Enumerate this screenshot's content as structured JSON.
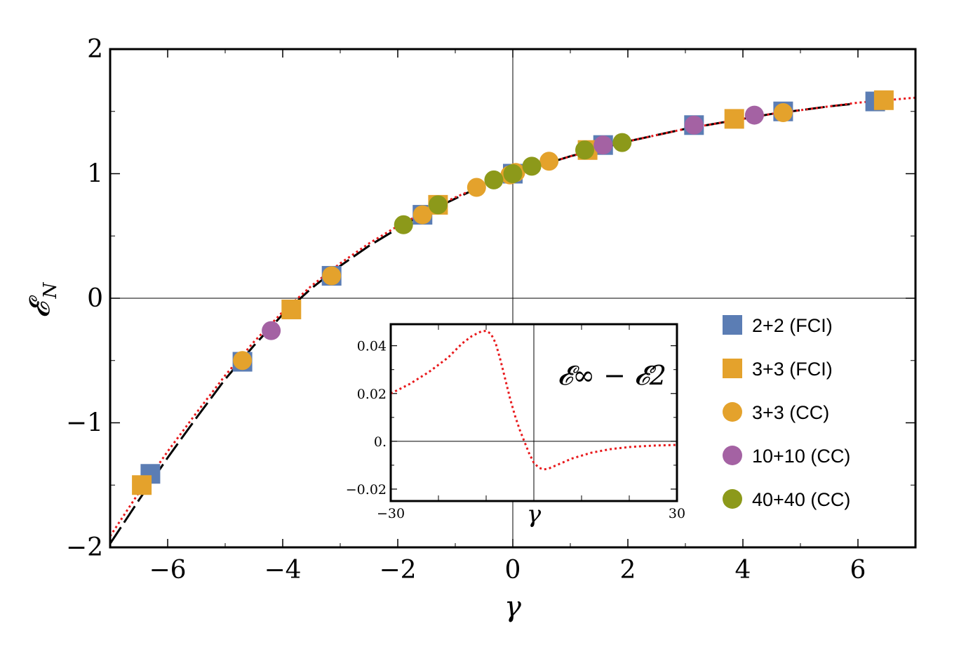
{
  "chart_data": {
    "type": "scatter",
    "xlabel": "γ",
    "ylabel": "𝓔",
    "ylabel_sub": "N",
    "xlim": [
      -7,
      7
    ],
    "ylim": [
      -2,
      2
    ],
    "xticks": [
      -6,
      -4,
      -2,
      0,
      2,
      4,
      6
    ],
    "xtick_labels": [
      "−6",
      "−4",
      "−2",
      "0",
      "2",
      "4",
      "6"
    ],
    "yticks": [
      -2,
      -1,
      0,
      1,
      2
    ],
    "ytick_labels": [
      "−2",
      "−1",
      "0",
      "1",
      "2"
    ],
    "grid": false,
    "legend_position": "bottom-right",
    "curves": {
      "black_dashed": [
        [
          -7.0,
          -1.97
        ],
        [
          -6.5,
          -1.62
        ],
        [
          -6.0,
          -1.28
        ],
        [
          -5.5,
          -0.96
        ],
        [
          -5.0,
          -0.65
        ],
        [
          -4.5,
          -0.38
        ],
        [
          -4.0,
          -0.13
        ],
        [
          -3.5,
          0.08
        ],
        [
          -3.0,
          0.26
        ],
        [
          -2.5,
          0.42
        ],
        [
          -2.0,
          0.56
        ],
        [
          -1.5,
          0.69
        ],
        [
          -1.0,
          0.8
        ],
        [
          -0.5,
          0.91
        ],
        [
          0.0,
          1.0
        ],
        [
          0.5,
          1.07
        ],
        [
          1.0,
          1.14
        ],
        [
          1.5,
          1.2
        ],
        [
          2.0,
          1.26
        ],
        [
          2.5,
          1.31
        ],
        [
          3.0,
          1.36
        ],
        [
          3.5,
          1.4
        ],
        [
          4.0,
          1.44
        ],
        [
          4.5,
          1.48
        ],
        [
          5.0,
          1.51
        ],
        [
          5.5,
          1.54
        ],
        [
          5.9,
          1.56
        ]
      ],
      "red_dotted": [
        [
          -7.0,
          -1.91
        ],
        [
          -6.5,
          -1.56
        ],
        [
          -6.0,
          -1.23
        ],
        [
          -5.5,
          -0.92
        ],
        [
          -5.0,
          -0.62
        ],
        [
          -4.5,
          -0.35
        ],
        [
          -4.0,
          -0.11
        ],
        [
          -3.5,
          0.1
        ],
        [
          -3.0,
          0.28
        ],
        [
          -2.5,
          0.44
        ],
        [
          -2.0,
          0.58
        ],
        [
          -1.5,
          0.7
        ],
        [
          -1.0,
          0.81
        ],
        [
          -0.5,
          0.91
        ],
        [
          0.0,
          1.0
        ],
        [
          0.5,
          1.07
        ],
        [
          1.0,
          1.14
        ],
        [
          1.5,
          1.2
        ],
        [
          2.0,
          1.26
        ],
        [
          2.5,
          1.31
        ],
        [
          3.0,
          1.36
        ],
        [
          3.5,
          1.4
        ],
        [
          4.0,
          1.44
        ],
        [
          4.5,
          1.48
        ],
        [
          5.0,
          1.51
        ],
        [
          5.5,
          1.54
        ],
        [
          6.0,
          1.57
        ],
        [
          6.5,
          1.59
        ],
        [
          7.0,
          1.61
        ]
      ]
    },
    "series": [
      {
        "name": "2+2 (FCI)",
        "marker": "square",
        "color": "#5b7db4",
        "points": [
          [
            -6.3,
            -1.41
          ],
          [
            -4.7,
            -0.51
          ],
          [
            -3.15,
            0.18
          ],
          [
            -1.57,
            0.67
          ],
          [
            0.0,
            1.0
          ],
          [
            1.57,
            1.23
          ],
          [
            3.15,
            1.39
          ],
          [
            4.7,
            1.5
          ],
          [
            6.3,
            1.58
          ]
        ]
      },
      {
        "name": "3+3 (FCI)",
        "marker": "square",
        "color": "#e4a22c",
        "points": [
          [
            -6.45,
            -1.5
          ],
          [
            -3.85,
            -0.09
          ],
          [
            -1.3,
            0.75
          ],
          [
            1.3,
            1.19
          ],
          [
            3.85,
            1.44
          ],
          [
            6.45,
            1.59
          ]
        ]
      },
      {
        "name": "3+3 (CC)",
        "marker": "circle",
        "color": "#e4a22c",
        "points": [
          [
            -4.7,
            -0.5
          ],
          [
            -3.15,
            0.18
          ],
          [
            -1.57,
            0.67
          ],
          [
            -0.63,
            0.89
          ],
          [
            -0.05,
            0.99
          ],
          [
            0.05,
            1.01
          ],
          [
            0.63,
            1.1
          ],
          [
            1.3,
            1.19
          ],
          [
            4.7,
            1.49
          ]
        ]
      },
      {
        "name": "10+10 (CC)",
        "marker": "circle",
        "color": "#a462a3",
        "points": [
          [
            -4.2,
            -0.26
          ],
          [
            1.57,
            1.23
          ],
          [
            3.15,
            1.39
          ],
          [
            4.2,
            1.47
          ]
        ]
      },
      {
        "name": "40+40 (CC)",
        "marker": "circle",
        "color": "#8c991a",
        "points": [
          [
            -1.9,
            0.59
          ],
          [
            -1.3,
            0.75
          ],
          [
            -0.33,
            0.95
          ],
          [
            0.0,
            1.0
          ],
          [
            0.33,
            1.06
          ],
          [
            1.25,
            1.19
          ],
          [
            1.9,
            1.25
          ]
        ]
      }
    ],
    "inset": {
      "label": "𝓔∞ − 𝓔2",
      "xlabel": "γ",
      "xlim": [
        -30,
        30
      ],
      "ylim": [
        -0.025,
        0.049
      ],
      "xtick_labels": [
        "−30",
        "30"
      ],
      "yticks": [
        -0.02,
        0.0,
        0.02,
        0.04
      ],
      "ytick_labels": [
        "−0.02",
        "0.",
        "0.02",
        "0.04"
      ],
      "curve": [
        [
          -30,
          0.02
        ],
        [
          -26,
          0.024
        ],
        [
          -22,
          0.029
        ],
        [
          -18,
          0.035
        ],
        [
          -15,
          0.041
        ],
        [
          -13,
          0.044
        ],
        [
          -11,
          0.046
        ],
        [
          -10,
          0.0462
        ],
        [
          -9,
          0.045
        ],
        [
          -8,
          0.041
        ],
        [
          -7,
          0.034
        ],
        [
          -6,
          0.026
        ],
        [
          -5,
          0.018
        ],
        [
          -4,
          0.011
        ],
        [
          -3,
          0.005
        ],
        [
          -2,
          0.0
        ],
        [
          -1,
          -0.005
        ],
        [
          0,
          -0.009
        ],
        [
          1,
          -0.011
        ],
        [
          2,
          -0.0118
        ],
        [
          3,
          -0.0115
        ],
        [
          5,
          -0.0098
        ],
        [
          8,
          -0.0072
        ],
        [
          12,
          -0.0048
        ],
        [
          16,
          -0.0033
        ],
        [
          20,
          -0.0024
        ],
        [
          25,
          -0.0018
        ],
        [
          30,
          -0.0015
        ]
      ]
    }
  }
}
